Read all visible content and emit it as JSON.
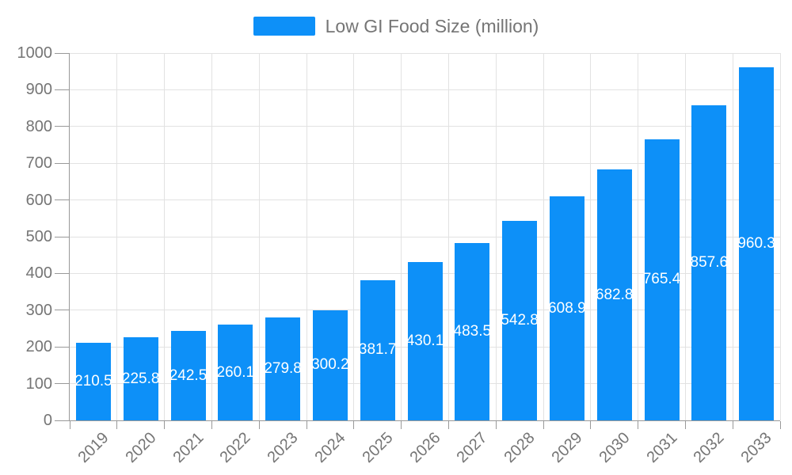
{
  "legend": {
    "series_label": "Low GI Food Size (million)"
  },
  "colors": {
    "bar": "#0d90f8",
    "axis_line": "#999999",
    "grid_line": "#e2e2e2",
    "tick_text": "#757575",
    "bar_label_text": "#ffffff",
    "background": "#ffffff"
  },
  "chart_data": {
    "type": "bar",
    "title": "",
    "legend_entries": [
      "Low GI Food Size (million)"
    ],
    "categories": [
      "2019",
      "2020",
      "2021",
      "2022",
      "2023",
      "2024",
      "2025",
      "2026",
      "2027",
      "2028",
      "2029",
      "2030",
      "2031",
      "2032",
      "2033"
    ],
    "series": [
      {
        "name": "Low GI Food Size (million)",
        "values": [
          210.5,
          225.8,
          242.5,
          260.1,
          279.8,
          300.2,
          381.7,
          430.1,
          483.5,
          542.8,
          608.9,
          682.8,
          765.4,
          857.6,
          960.3
        ]
      }
    ],
    "xlabel": "",
    "ylabel": "",
    "ylim": [
      0,
      1000
    ],
    "ytick_step": 100,
    "ytick_labels": [
      "0",
      "100",
      "200",
      "300",
      "400",
      "500",
      "600",
      "700",
      "800",
      "900",
      "1000"
    ],
    "grid": "both",
    "legend_position": "top-center",
    "xtick_rotation_deg": 45,
    "value_label_position": "inside-center",
    "value_label_decimals": 1
  }
}
